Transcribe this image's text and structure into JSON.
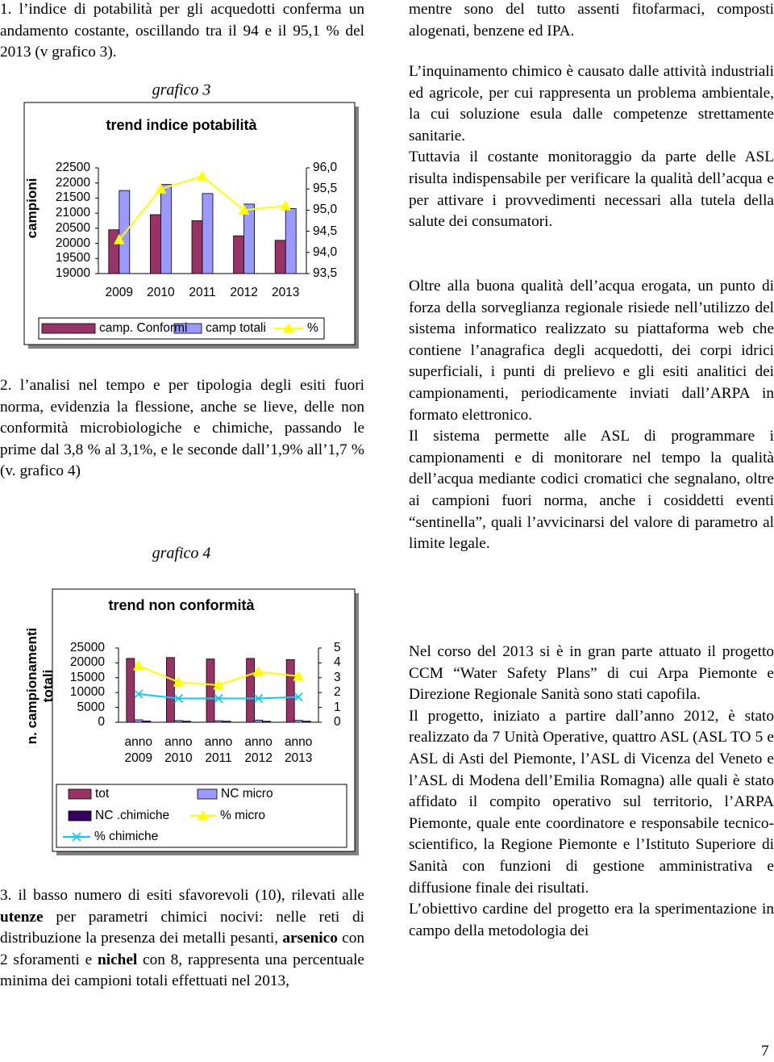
{
  "left_column": {
    "paragraph_1": "1. l’indice di potabilità per gli acquedotti conferma un andamento costante, oscillando tra il 94 e il 95,1 % del 2013 (v grafico 3).",
    "paragraph_2": "2. l’analisi nel tempo e per tipologia degli esiti fuori norma, evidenzia la flessione, anche se lieve, delle non conformità microbiologiche e chimiche, passando le prime dal 3,8 % al 3,1%, e le seconde dall’1,9% all’1,7 % (v. grafico 4)",
    "paragraph_3": [
      "3. il basso numero di esiti sfavorevoli (10), rilevati alle ",
      "utenze",
      " per parametri chimici nocivi: nelle reti di distribuzione la presenza dei metalli pesanti, ",
      "arsenico",
      " con 2 sforamenti e ",
      "nichel",
      " con 8, rappresenta una percentuale minima dei campioni totali effettuati nel 2013,"
    ]
  },
  "figure_captions": [
    "grafico 3",
    "grafico 4"
  ],
  "chart_data": [
    {
      "type": "bar",
      "title": "trend indice potabilità",
      "ylabel": "campioni",
      "categories": [
        "2009",
        "2010",
        "2011",
        "2012",
        "2013"
      ],
      "series": [
        {
          "name": "camp. Conformi",
          "color": "#993366",
          "values": [
            20450,
            20950,
            20750,
            20250,
            20100
          ]
        },
        {
          "name": "camp totali",
          "color": "#9999ff",
          "values": [
            21750,
            21950,
            21650,
            21300,
            21150
          ]
        },
        {
          "name": "%",
          "color": "#ffff00",
          "type": "line",
          "marker": "triangle",
          "axis": "y2",
          "values": [
            94.3,
            95.5,
            95.8,
            95.0,
            95.1
          ]
        }
      ],
      "ylim": [
        19000,
        22500
      ],
      "yticks": [
        19000,
        19500,
        20000,
        20500,
        21000,
        21500,
        22000,
        22500
      ],
      "y2lim": [
        93.5,
        96
      ],
      "y2ticks": [
        {
          "value": 93.5,
          "label": "93,5"
        },
        {
          "value": 94,
          "label": "94,0"
        },
        {
          "value": 94.5,
          "label": "94,5"
        },
        {
          "value": 95,
          "label": "95,0"
        },
        {
          "value": 95.5,
          "label": "95,5"
        },
        {
          "value": 96,
          "label": "96,0"
        }
      ]
    },
    {
      "type": "bar",
      "title": "trend non conformità",
      "ylabel": "n. campionamenti totali",
      "categories": [
        "anno 2009",
        "anno 2010",
        "anno 2011",
        "anno 2012",
        "anno 2013"
      ],
      "series": [
        {
          "name": "tot",
          "color": "#993366",
          "values": [
            21500,
            21800,
            21300,
            21500,
            21100
          ]
        },
        {
          "name": "NC micro",
          "color": "#9999ff",
          "values": [
            820,
            580,
            530,
            730,
            650
          ]
        },
        {
          "name": "NC .chimiche",
          "color": "#330066",
          "values": [
            410,
            350,
            340,
            340,
            360
          ]
        },
        {
          "name": "% micro",
          "color": "#ffff00",
          "type": "line",
          "marker": "triangle",
          "axis": "y2",
          "values": [
            3.8,
            2.7,
            2.5,
            3.4,
            3.1
          ]
        },
        {
          "name": "% chimiche",
          "color": "#00ccff",
          "type": "line",
          "marker": "x",
          "axis": "y2",
          "values": [
            1.9,
            1.6,
            1.6,
            1.6,
            1.7
          ]
        }
      ],
      "ylim": [
        0,
        25000
      ],
      "yticks": [
        0,
        5000,
        10000,
        15000,
        20000,
        25000
      ],
      "y2lim": [
        0,
        5
      ],
      "y2ticks": [
        0,
        1,
        2,
        3,
        4,
        5
      ]
    }
  ],
  "right_column": {
    "blocks": [
      [
        "mentre sono del tutto assenti fitofarmaci, composti alogenati, benzene ed IPA."
      ],
      [
        "L’inquinamento chimico è causato dalle attività industriali ed agricole, per cui rappresenta un problema ambientale, la cui soluzione esula dalle competenze strettamente sanitarie.",
        "Tuttavia il costante monitoraggio da parte delle ASL risulta indispensabile per verificare la qualità dell’acqua e per attivare i provvedimenti necessari alla tutela della salute dei consumatori."
      ],
      [
        "Oltre alla buona qualità dell’acqua erogata, un punto di forza della sorveglianza regionale risiede nell’utilizzo del sistema informatico realizzato su piattaforma web che contiene l’anagrafica degli acquedotti, dei corpi idrici superficiali, i punti di prelievo e gli esiti analitici dei campionamenti, periodicamente inviati dall’ARPA in formato elettronico.",
        "Il sistema permette alle ASL di programmare i campionamenti e di monitorare nel tempo la qualità dell’acqua mediante codici cromatici che segnalano, oltre ai campioni fuori norma, anche i cosiddetti eventi “sentinella”, quali l’avvicinarsi del valore di parametro al limite legale."
      ],
      [
        "Nel corso del 2013 si è in gran parte attuato il progetto CCM “Water Safety Plans” di cui Arpa Piemonte e Direzione Regionale Sanità sono stati capofila.",
        "Il progetto, iniziato a partire dall’anno 2012, è stato realizzato da 7 Unità Operative, quattro ASL (ASL TO 5 e ASL di Asti del Piemonte, l’ASL di Vicenza del Veneto e l’ASL di Modena dell’Emilia Romagna) alle quali è stato affidato il compito operativo sul territorio, l’ARPA Piemonte, quale ente coordinatore e responsabile tecnico-scientifico, la Regione Piemonte e l’Istituto Superiore di Sanità con funzioni di gestione amministrativa e diffusione finale dei risultati.",
        "L’obiettivo cardine del progetto era la sperimentazione in campo della metodologia dei"
      ]
    ]
  },
  "page_number": 7
}
